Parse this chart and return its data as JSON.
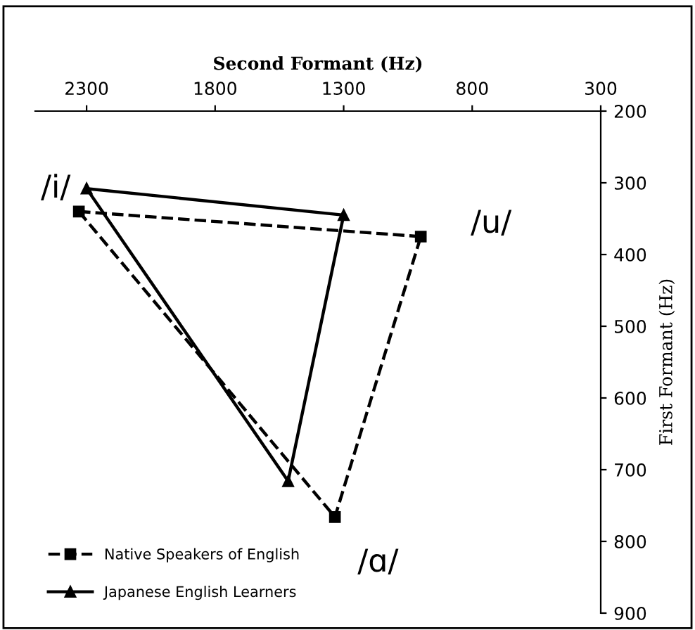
{
  "chart_data": {
    "type": "line",
    "xlabel": "Second Formant (Hz)",
    "ylabel": "First Formant (Hz)",
    "xlim": [
      2500,
      300
    ],
    "xticks": [
      2300,
      1800,
      1300,
      800,
      300
    ],
    "ylim": [
      900,
      200
    ],
    "yticks": [
      200,
      300,
      400,
      500,
      600,
      700,
      800,
      900
    ],
    "grid": false,
    "legend": "bottom left",
    "series": [
      {
        "name": "Native Speakers of English",
        "color": "#000000",
        "marker": "square",
        "line_style": "dashed",
        "x": [
          2330,
          1334,
          1000
        ],
        "values": [
          340,
          766,
          375
        ]
      },
      {
        "color": "#000000",
        "marker": "none",
        "line_style": "dashed",
        "x": [
          2330,
          1000
        ],
        "values": [
          340,
          375
        ]
      },
      {
        "name": "Japanese English Learners",
        "color": "#000000",
        "marker": "triangle",
        "line_style": "solid",
        "x": [
          2300,
          1516,
          1300
        ],
        "values": [
          308,
          716,
          345
        ]
      },
      {
        "color": "#000000",
        "marker": "none",
        "line_style": "solid",
        "x": [
          2300,
          1300
        ],
        "values": [
          308,
          345
        ]
      }
    ],
    "annotations": [
      "/i/",
      "/u/",
      "/ɑ/"
    ]
  }
}
